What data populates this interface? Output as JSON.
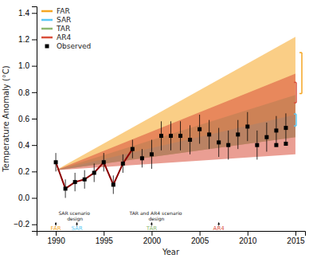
{
  "chart_data": {
    "type": "line",
    "xlabel": "Year",
    "ylabel": "Temperature Anomaly (°C)",
    "xlim": [
      1988,
      2016
    ],
    "ylim": [
      -0.25,
      1.45
    ],
    "xticks": [
      1990,
      1995,
      2000,
      2005,
      2010,
      2015
    ],
    "yticks": [
      {
        "value": -0.2,
        "label": "−0.2"
      },
      {
        "value": 0.0,
        "label": "0.0"
      },
      0.2,
      0.4,
      0.6,
      0.8,
      {
        "value": 1.0,
        "label": "1.0"
      },
      1.2,
      1.4
    ],
    "grid": false,
    "legend": "upper left",
    "series": [
      {
        "name": "FAR",
        "type": "area",
        "color": "#F5A623",
        "x": [
          1990,
          2015
        ],
        "y_low": [
          0.21,
          0.46
        ],
        "y_high": [
          0.21,
          1.22
        ]
      },
      {
        "name": "SAR",
        "type": "area",
        "color": "#5BC8F5",
        "x": [
          1990,
          2015
        ],
        "y_low": [
          0.21,
          0.46
        ],
        "y_high": [
          0.21,
          0.63
        ]
      },
      {
        "name": "TAR",
        "type": "area",
        "color": "#8DB870",
        "x": [
          1990,
          2015
        ],
        "y_low": [
          0.21,
          0.46
        ],
        "y_high": [
          0.21,
          0.78
        ]
      },
      {
        "name": "AR4",
        "type": "area",
        "color": "#D94F3B",
        "x": [
          1990,
          2015
        ],
        "y_low": [
          0.21,
          0.33
        ],
        "y_high": [
          0.21,
          0.94
        ]
      },
      {
        "type": "line",
        "color": "#8B0000",
        "x": [
          1990,
          1991,
          1992,
          1993,
          1994,
          1995,
          1996,
          1997,
          1998
        ],
        "values": [
          0.27,
          0.07,
          0.12,
          0.14,
          0.19,
          0.27,
          0.1,
          0.26,
          0.37
        ]
      },
      {
        "name": "Observed",
        "type": "scatter",
        "marker": "square",
        "color": "#000000",
        "x": [
          1990,
          1991,
          1992,
          1993,
          1994,
          1995,
          1996,
          1997,
          1998,
          1999,
          2000,
          2001,
          2002,
          2003,
          2004,
          2005,
          2006,
          2007,
          2008,
          2009,
          2010,
          2011,
          2012,
          2013,
          2014
        ],
        "values": [
          0.27,
          0.07,
          0.12,
          0.14,
          0.19,
          0.27,
          0.1,
          0.26,
          0.37,
          0.3,
          0.33,
          0.47,
          0.47,
          0.47,
          0.44,
          0.52,
          0.48,
          0.42,
          0.4,
          0.48,
          0.54,
          0.4,
          0.46,
          0.51,
          0.53
        ],
        "errors": [
          0.07,
          0.07,
          0.07,
          0.07,
          0.07,
          0.07,
          0.07,
          0.07,
          0.07,
          0.07,
          0.11,
          0.11,
          0.11,
          0.11,
          0.11,
          0.11,
          0.11,
          0.11,
          0.11,
          0.11,
          0.11,
          0.11,
          0.11,
          0.11,
          0.11
        ]
      },
      {
        "type": "scatter",
        "marker": "square",
        "color": "#000000",
        "x": [
          2013,
          2014
        ],
        "values": [
          0.4,
          0.41
        ]
      }
    ],
    "annotations": [
      {
        "text": "FAR",
        "x": 1990.0,
        "y": -0.215,
        "color": "#F5A623",
        "arrow": true
      },
      {
        "text": "SAR",
        "x": 1992.2,
        "y": -0.215,
        "color": "#5BC8F5",
        "arrow": true
      },
      {
        "text": "TAR",
        "x": 2000.0,
        "y": -0.215,
        "color": "#8DB870",
        "arrow": true
      },
      {
        "text": "AR4",
        "x": 2007.0,
        "y": -0.215,
        "color": "#D94F3B",
        "arrow": true
      },
      {
        "text": "SAR scenario\ndesign",
        "x": 1992.0,
        "y": -0.103
      },
      {
        "text": "TAR and AR4 scenario\ndesign",
        "x": 2000.5,
        "y": -0.103
      }
    ],
    "brackets": [
      {
        "color": "#F5A623",
        "low": 0.79,
        "high": 1.1
      },
      {
        "color": "#D94F3B",
        "low": 0.72,
        "high": 0.875
      },
      {
        "color": "#5BC8F5",
        "low": 0.545,
        "high": 0.635
      }
    ]
  }
}
